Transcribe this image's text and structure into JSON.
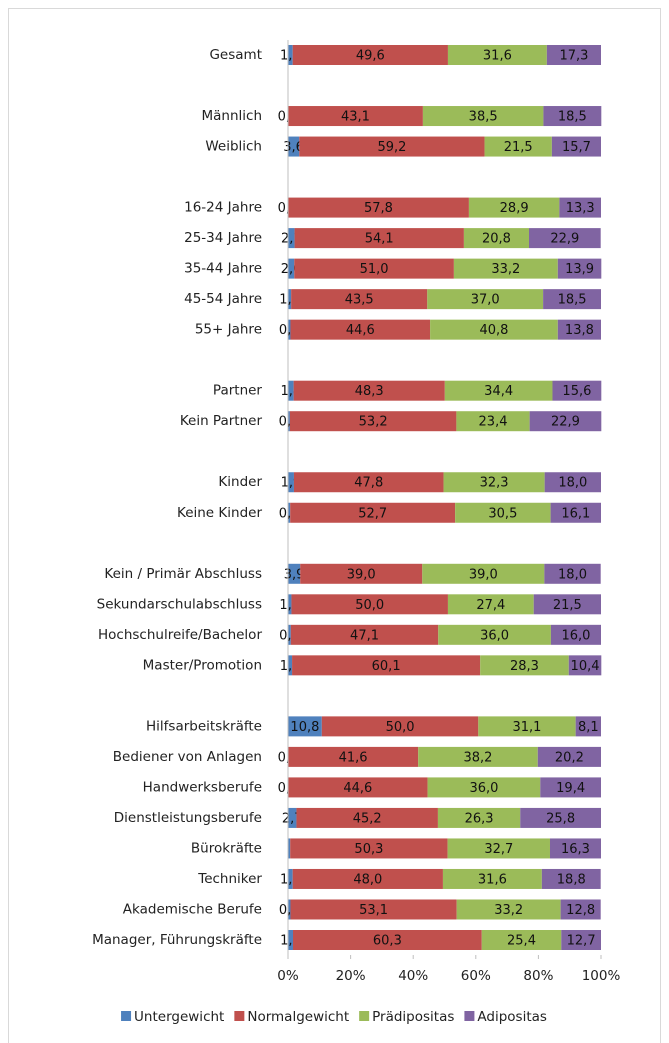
{
  "chart_data": {
    "type": "stacked_bar_horizontal",
    "categories": [
      "Gesamt",
      null,
      "Männlich",
      "Weiblich",
      null,
      "16-24 Jahre",
      "25-34 Jahre",
      "35-44 Jahre",
      "45-54 Jahre",
      "55+ Jahre",
      null,
      "Partner",
      "Kein Partner",
      null,
      "Kinder",
      "Keine Kinder",
      null,
      "Kein / Primär Abschluss",
      "Sekundarschulabschluss",
      "Hochschulreife/Bachelor",
      "Master/Promotion",
      null,
      "Hilfsarbeitskräfte",
      "Bediener von Anlagen",
      "Handwerksberufe",
      "Dienstleistungsberufe",
      "Bürokräfte",
      "Techniker",
      "Akademische Berufe",
      "Manager, Führungskräfte"
    ],
    "series": [
      {
        "name": "Untergewicht",
        "color": "#4f81bd",
        "values": [
          1.5,
          null,
          0,
          3.6,
          null,
          0,
          2.1,
          2.0,
          1.0,
          0.8,
          null,
          1.8,
          0.6,
          null,
          1.9,
          0.7,
          null,
          3.9,
          1.1,
          0.9,
          1.3,
          null,
          10.8,
          0,
          0,
          2.7,
          0.7,
          1.5,
          0.8,
          1.6
        ],
        "value_labels": [
          "1,5",
          null,
          "0,0",
          "3,6",
          null,
          "0,0",
          "2,1",
          "2,0",
          "1,0",
          "0,8",
          null,
          "1,8",
          "0,6",
          null,
          "1,9",
          "0,7",
          null,
          "3,9",
          "1,1",
          "0,9",
          "1,3",
          null,
          "10,8",
          "0,0",
          "0,0",
          "2,7",
          null,
          "1,5",
          "0,8",
          "1,6"
        ]
      },
      {
        "name": "Normalgewicht",
        "color": "#c0504d",
        "values": [
          49.6,
          null,
          43.1,
          59.2,
          null,
          57.8,
          54.1,
          51.0,
          43.5,
          44.6,
          null,
          48.3,
          53.2,
          null,
          47.8,
          52.7,
          null,
          39.0,
          50.0,
          47.1,
          60.1,
          null,
          50.0,
          41.6,
          44.6,
          45.2,
          50.3,
          48.0,
          53.1,
          60.3
        ],
        "value_labels": [
          "49,6",
          null,
          "43,1",
          "59,2",
          null,
          "57,8",
          "54,1",
          "51,0",
          "43,5",
          "44,6",
          null,
          "48,3",
          "53,2",
          null,
          "47,8",
          "52,7",
          null,
          "39,0",
          "50,0",
          "47,1",
          "60,1",
          null,
          "50,0",
          "41,6",
          "44,6",
          "45,2",
          "50,3",
          "48,0",
          "53,1",
          "60,3"
        ]
      },
      {
        "name": "Prädipositas",
        "color": "#9bbb59",
        "values": [
          31.6,
          null,
          38.5,
          21.5,
          null,
          28.9,
          20.8,
          33.2,
          37.0,
          40.8,
          null,
          34.4,
          23.4,
          null,
          32.3,
          30.5,
          null,
          39.0,
          27.4,
          36.0,
          28.3,
          null,
          31.1,
          38.2,
          36.0,
          26.3,
          32.7,
          31.6,
          33.2,
          25.4
        ],
        "value_labels": [
          "31,6",
          null,
          "38,5",
          "21,5",
          null,
          "28,9",
          "20,8",
          "33,2",
          "37,0",
          "40,8",
          null,
          "34,4",
          "23,4",
          null,
          "32,3",
          "30,5",
          null,
          "39,0",
          "27,4",
          "36,0",
          "28,3",
          null,
          "31,1",
          "38,2",
          "36,0",
          "26,3",
          "32,7",
          "31,6",
          "33,2",
          "25,4"
        ]
      },
      {
        "name": "Adipositas",
        "color": "#8064a2",
        "values": [
          17.3,
          null,
          18.5,
          15.7,
          null,
          13.3,
          22.9,
          13.9,
          18.5,
          13.8,
          null,
          15.6,
          22.9,
          null,
          18.0,
          16.1,
          null,
          18.0,
          21.5,
          16.0,
          10.4,
          null,
          8.1,
          20.2,
          19.4,
          25.8,
          16.3,
          18.8,
          12.8,
          12.7
        ],
        "value_labels": [
          "17,3",
          null,
          "18,5",
          "15,7",
          null,
          "13,3",
          "22,9",
          "13,9",
          "18,5",
          "13,8",
          null,
          "15,6",
          "22,9",
          null,
          "18,0",
          "16,1",
          null,
          "18,0",
          "21,5",
          "16,0",
          "10,4",
          null,
          "8,1",
          "20,2",
          "19,4",
          "25,8",
          "16,3",
          "18,8",
          "12,8",
          "12,7"
        ]
      }
    ],
    "xlim": [
      0,
      100
    ],
    "xticks": [
      {
        "value": 0,
        "label": "0%"
      },
      {
        "value": 20,
        "label": "20%"
      },
      {
        "value": 40,
        "label": "40%"
      },
      {
        "value": 60,
        "label": "60%"
      },
      {
        "value": 80,
        "label": "80%"
      },
      {
        "value": 100,
        "label": "100%"
      }
    ],
    "legend": "bottom"
  }
}
